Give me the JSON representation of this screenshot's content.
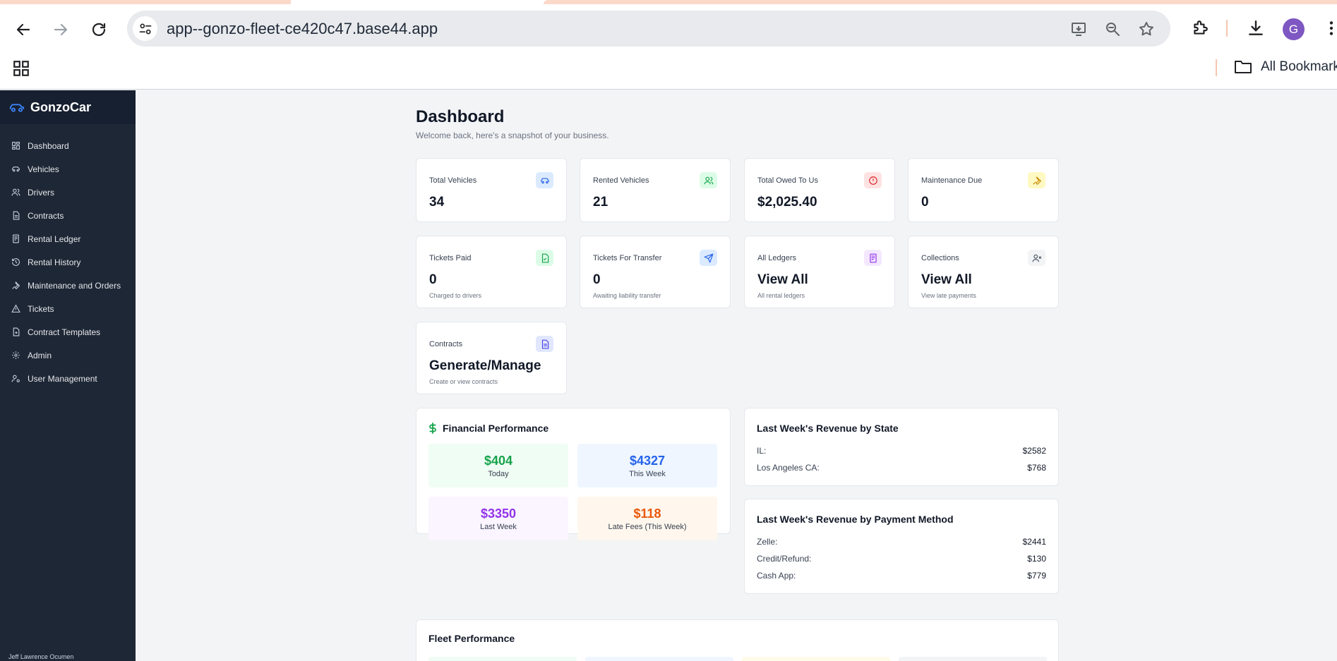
{
  "browser": {
    "url": "app--gonzo-fleet-ce420c47.base44.app",
    "avatar_letter": "G",
    "bookmarks_label": "All Bookmarks"
  },
  "sidebar": {
    "brand": "GonzoCar",
    "items": [
      {
        "label": "Dashboard",
        "icon": "grid-icon"
      },
      {
        "label": "Vehicles",
        "icon": "car-icon"
      },
      {
        "label": "Drivers",
        "icon": "users-icon"
      },
      {
        "label": "Contracts",
        "icon": "file-icon"
      },
      {
        "label": "Rental Ledger",
        "icon": "ledger-icon"
      },
      {
        "label": "Rental History",
        "icon": "history-icon"
      },
      {
        "label": "Maintenance and Orders",
        "icon": "wrench-icon"
      },
      {
        "label": "Tickets",
        "icon": "warning-icon"
      },
      {
        "label": "Contract Templates",
        "icon": "file-plus-icon"
      },
      {
        "label": "Admin",
        "icon": "gear-icon"
      },
      {
        "label": "User Management",
        "icon": "user-cog-icon"
      }
    ],
    "footer_user": "Jeff Lawrence Ocumen"
  },
  "header": {
    "title": "Dashboard",
    "subtitle": "Welcome back, here's a snapshot of your business."
  },
  "stats": [
    {
      "label": "Total Vehicles",
      "value": "34",
      "note": ""
    },
    {
      "label": "Rented Vehicles",
      "value": "21",
      "note": ""
    },
    {
      "label": "Total Owed To Us",
      "value": "$2,025.40",
      "note": ""
    },
    {
      "label": "Maintenance Due",
      "value": "0",
      "note": ""
    },
    {
      "label": "Tickets Paid",
      "value": "0",
      "note": "Charged to drivers"
    },
    {
      "label": "Tickets For Transfer",
      "value": "0",
      "note": "Awaiting liability transfer"
    },
    {
      "label": "All Ledgers",
      "value": "View All",
      "note": "All rental ledgers"
    },
    {
      "label": "Collections",
      "value": "View All",
      "note": "View late payments"
    },
    {
      "label": "Contracts",
      "value": "Generate/Manage",
      "note": "Create or view contracts"
    }
  ],
  "financial": {
    "title": "Financial Performance",
    "icon": "dollar-icon",
    "boxes": [
      {
        "value": "$404",
        "label": "Today",
        "color": "#16a34a",
        "bg": "#f0fdf4"
      },
      {
        "value": "$4327",
        "label": "This Week",
        "color": "#2563eb",
        "bg": "#eff6ff"
      },
      {
        "value": "$3350",
        "label": "Last Week",
        "color": "#9333ea",
        "bg": "#faf5ff"
      },
      {
        "value": "$118",
        "label": "Late Fees (This Week)",
        "color": "#ea580c",
        "bg": "#fff7ed"
      }
    ]
  },
  "revenue_state": {
    "title": "Last Week's Revenue by State",
    "rows": [
      {
        "label": "IL:",
        "amount": "$2582"
      },
      {
        "label": "Los Angeles CA:",
        "amount": "$768"
      }
    ]
  },
  "revenue_method": {
    "title": "Last Week's Revenue by Payment Method",
    "rows": [
      {
        "label": "Zelle:",
        "amount": "$2441"
      },
      {
        "label": "Credit/Refund:",
        "amount": "$130"
      },
      {
        "label": "Cash App:",
        "amount": "$779"
      }
    ]
  },
  "fleet": {
    "title": "Fleet Performance"
  },
  "colors": {
    "sidebar_bg": "#1e2735",
    "brand_bg": "#172030",
    "brand_icon": "#3b82f6",
    "page_bg": "#f3f4f6"
  }
}
